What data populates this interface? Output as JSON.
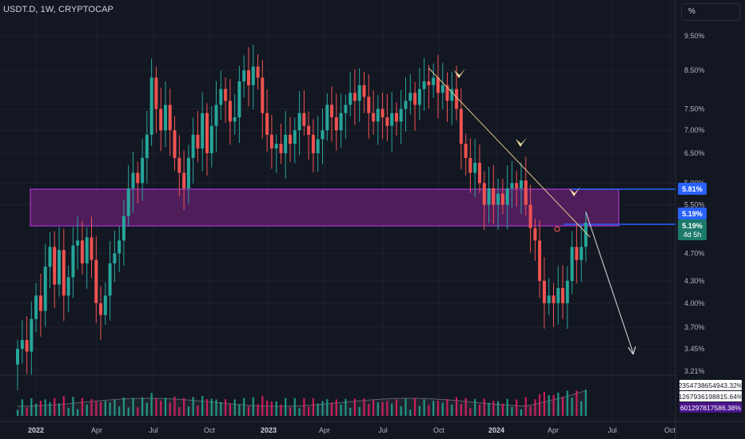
{
  "header": {
    "symbol_line": "USDT.D, 1W, CRYPTOCAP"
  },
  "scale_button": {
    "label": "%"
  },
  "colors": {
    "background": "#131722",
    "up": "#26a69a",
    "down": "#ef5350",
    "zone_fill": "#5b1f66",
    "zone_border": "#c23df0",
    "level_line": "#2962ff",
    "trend_line": "#e0c58a",
    "arrow": "#ffffff",
    "marker": "#f5e6a8"
  },
  "chart_data": {
    "type": "candlestick",
    "y_scale": "log",
    "y_ticks": [
      "9.50%",
      "8.50%",
      "7.50%",
      "7.00%",
      "6.50%",
      "5.90%",
      "5.50%",
      "4.70%",
      "4.30%",
      "4.00%",
      "3.70%",
      "3.45%",
      "3.21%"
    ],
    "x_ticks": [
      "2022",
      "Apr",
      "Jul",
      "Oct",
      "2023",
      "Apr",
      "Jul",
      "Oct",
      "2024",
      "Apr",
      "Jul",
      "Oct"
    ],
    "price_labels": [
      {
        "text": "5.81%"
      },
      {
        "text": "5.19%"
      },
      {
        "text": "5.19%",
        "sub": "4d 5h"
      }
    ],
    "volume_labels": [
      "2354738654943.32%",
      "1267936198815.64%",
      "601297817586.38%"
    ],
    "series": [
      {
        "o": 3.28,
        "c": 3.45
      },
      {
        "o": 3.45,
        "c": 3.55
      },
      {
        "o": 3.55,
        "c": 3.42
      },
      {
        "o": 3.42,
        "c": 3.8
      },
      {
        "o": 3.8,
        "c": 4.1
      },
      {
        "o": 4.1,
        "c": 3.9
      },
      {
        "o": 3.9,
        "c": 4.5
      },
      {
        "o": 4.5,
        "c": 4.8
      },
      {
        "o": 4.8,
        "c": 4.25
      },
      {
        "o": 4.25,
        "c": 4.75
      },
      {
        "o": 4.75,
        "c": 4.1
      },
      {
        "o": 4.1,
        "c": 4.35
      },
      {
        "o": 4.35,
        "c": 4.82
      },
      {
        "o": 4.82,
        "c": 4.9
      },
      {
        "o": 4.9,
        "c": 4.55
      },
      {
        "o": 4.55,
        "c": 4.95
      },
      {
        "o": 4.95,
        "c": 4.6
      },
      {
        "o": 4.6,
        "c": 4.0
      },
      {
        "o": 4.0,
        "c": 3.85
      },
      {
        "o": 3.85,
        "c": 4.1
      },
      {
        "o": 4.1,
        "c": 4.55
      },
      {
        "o": 4.55,
        "c": 4.7
      },
      {
        "o": 4.7,
        "c": 4.9
      },
      {
        "o": 4.9,
        "c": 5.3
      },
      {
        "o": 5.3,
        "c": 5.8
      },
      {
        "o": 5.8,
        "c": 6.1
      },
      {
        "o": 6.1,
        "c": 5.9
      },
      {
        "o": 5.9,
        "c": 6.4
      },
      {
        "o": 6.4,
        "c": 6.9
      },
      {
        "o": 6.9,
        "c": 8.3
      },
      {
        "o": 8.3,
        "c": 7.5
      },
      {
        "o": 7.5,
        "c": 7.0
      },
      {
        "o": 7.0,
        "c": 7.6
      },
      {
        "o": 7.6,
        "c": 7.0
      },
      {
        "o": 7.0,
        "c": 6.4
      },
      {
        "o": 6.4,
        "c": 6.1
      },
      {
        "o": 6.1,
        "c": 5.8
      },
      {
        "o": 5.8,
        "c": 6.4
      },
      {
        "o": 6.4,
        "c": 6.9
      },
      {
        "o": 6.9,
        "c": 6.6
      },
      {
        "o": 6.6,
        "c": 7.4
      },
      {
        "o": 7.4,
        "c": 6.5
      },
      {
        "o": 6.5,
        "c": 7.1
      },
      {
        "o": 7.1,
        "c": 7.6
      },
      {
        "o": 7.6,
        "c": 8.0
      },
      {
        "o": 8.0,
        "c": 7.7
      },
      {
        "o": 7.7,
        "c": 7.2
      },
      {
        "o": 7.2,
        "c": 7.3
      },
      {
        "o": 7.3,
        "c": 8.2
      },
      {
        "o": 8.2,
        "c": 8.5
      },
      {
        "o": 8.5,
        "c": 8.1
      },
      {
        "o": 8.1,
        "c": 8.6
      },
      {
        "o": 8.6,
        "c": 8.3
      },
      {
        "o": 8.3,
        "c": 7.4
      },
      {
        "o": 7.4,
        "c": 6.9
      },
      {
        "o": 6.9,
        "c": 6.6
      },
      {
        "o": 6.6,
        "c": 6.7
      },
      {
        "o": 6.7,
        "c": 6.5
      },
      {
        "o": 6.5,
        "c": 6.9
      },
      {
        "o": 6.9,
        "c": 6.7
      },
      {
        "o": 6.7,
        "c": 7.0
      },
      {
        "o": 7.0,
        "c": 7.4
      },
      {
        "o": 7.4,
        "c": 7.1
      },
      {
        "o": 7.1,
        "c": 6.9
      },
      {
        "o": 6.9,
        "c": 6.5
      },
      {
        "o": 6.5,
        "c": 6.8
      },
      {
        "o": 6.8,
        "c": 7.0
      },
      {
        "o": 7.0,
        "c": 7.6
      },
      {
        "o": 7.6,
        "c": 7.3
      },
      {
        "o": 7.3,
        "c": 7.0
      },
      {
        "o": 7.0,
        "c": 7.4
      },
      {
        "o": 7.4,
        "c": 7.6
      },
      {
        "o": 7.6,
        "c": 7.9
      },
      {
        "o": 7.9,
        "c": 7.7
      },
      {
        "o": 7.7,
        "c": 8.1
      },
      {
        "o": 8.1,
        "c": 7.8
      },
      {
        "o": 7.8,
        "c": 7.4
      },
      {
        "o": 7.4,
        "c": 7.2
      },
      {
        "o": 7.2,
        "c": 7.5
      },
      {
        "o": 7.5,
        "c": 7.3
      },
      {
        "o": 7.3,
        "c": 7.1
      },
      {
        "o": 7.1,
        "c": 7.4
      },
      {
        "o": 7.4,
        "c": 7.2
      },
      {
        "o": 7.2,
        "c": 7.5
      },
      {
        "o": 7.5,
        "c": 7.7
      },
      {
        "o": 7.7,
        "c": 7.9
      },
      {
        "o": 7.9,
        "c": 7.6
      },
      {
        "o": 7.6,
        "c": 8.0
      },
      {
        "o": 8.0,
        "c": 8.2
      },
      {
        "o": 8.2,
        "c": 8.1
      },
      {
        "o": 8.1,
        "c": 8.3
      },
      {
        "o": 8.3,
        "c": 7.9
      },
      {
        "o": 7.9,
        "c": 8.1
      },
      {
        "o": 8.1,
        "c": 7.7
      },
      {
        "o": 7.7,
        "c": 8.0
      },
      {
        "o": 8.0,
        "c": 7.5
      },
      {
        "o": 7.5,
        "c": 6.7
      },
      {
        "o": 6.7,
        "c": 6.4
      },
      {
        "o": 6.4,
        "c": 6.1
      },
      {
        "o": 6.1,
        "c": 6.3
      },
      {
        "o": 6.3,
        "c": 5.9
      },
      {
        "o": 5.9,
        "c": 5.5
      },
      {
        "o": 5.5,
        "c": 5.8
      },
      {
        "o": 5.8,
        "c": 5.5
      },
      {
        "o": 5.5,
        "c": 5.7
      },
      {
        "o": 5.7,
        "c": 5.5
      },
      {
        "o": 5.5,
        "c": 5.8
      },
      {
        "o": 5.8,
        "c": 5.9
      },
      {
        "o": 5.9,
        "c": 5.8
      },
      {
        "o": 5.8,
        "c": 5.95
      },
      {
        "o": 5.95,
        "c": 5.5
      },
      {
        "o": 5.5,
        "c": 5.1
      },
      {
        "o": 5.1,
        "c": 4.9
      },
      {
        "o": 4.9,
        "c": 4.3
      },
      {
        "o": 4.3,
        "c": 4.0
      },
      {
        "o": 4.0,
        "c": 4.1
      },
      {
        "o": 4.1,
        "c": 4.0
      },
      {
        "o": 4.0,
        "c": 4.2
      },
      {
        "o": 4.2,
        "c": 4.0
      },
      {
        "o": 4.0,
        "c": 4.3
      },
      {
        "o": 4.3,
        "c": 4.8
      },
      {
        "o": 4.8,
        "c": 4.6
      },
      {
        "o": 4.6,
        "c": 4.8
      },
      {
        "o": 4.8,
        "c": 5.19
      }
    ]
  }
}
